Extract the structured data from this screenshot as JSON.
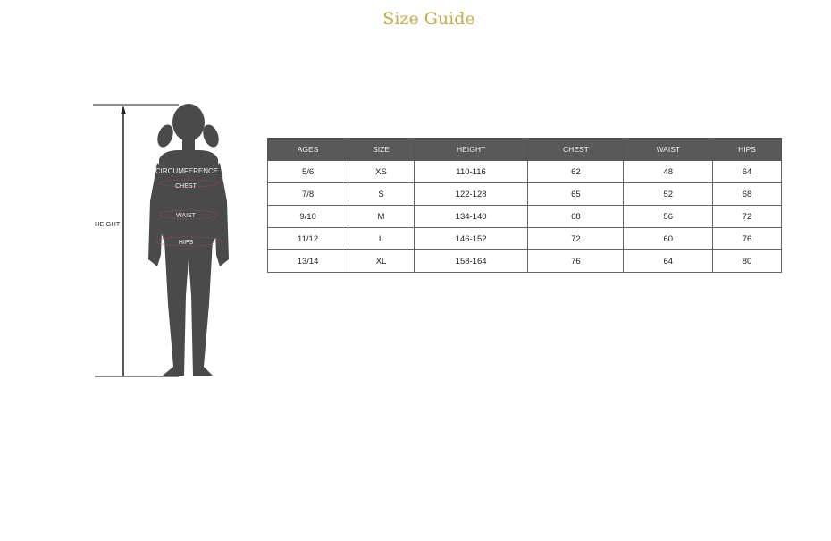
{
  "title": "Size Guide",
  "figure": {
    "height_label": "HEIGHT",
    "circumference_label": "CIRCUMFERENCE",
    "chest_label": "CHEST",
    "waist_label": "WAIST",
    "hips_label": "HIPS",
    "silhouette_color": "#4a4a4a",
    "measure_line_color": "#b04a5a"
  },
  "table": {
    "headers": [
      "AGES",
      "SIZE",
      "HEIGHT",
      "CHEST",
      "WAIST",
      "HIPS"
    ],
    "rows": [
      [
        "5/6",
        "XS",
        "110-116",
        "62",
        "48",
        "64"
      ],
      [
        "7/8",
        "S",
        "122-128",
        "65",
        "52",
        "68"
      ],
      [
        "9/10",
        "M",
        "134-140",
        "68",
        "56",
        "72"
      ],
      [
        "11/12",
        "L",
        "146-152",
        "72",
        "60",
        "76"
      ],
      [
        "13/14",
        "XL",
        "158-164",
        "76",
        "64",
        "80"
      ]
    ]
  }
}
